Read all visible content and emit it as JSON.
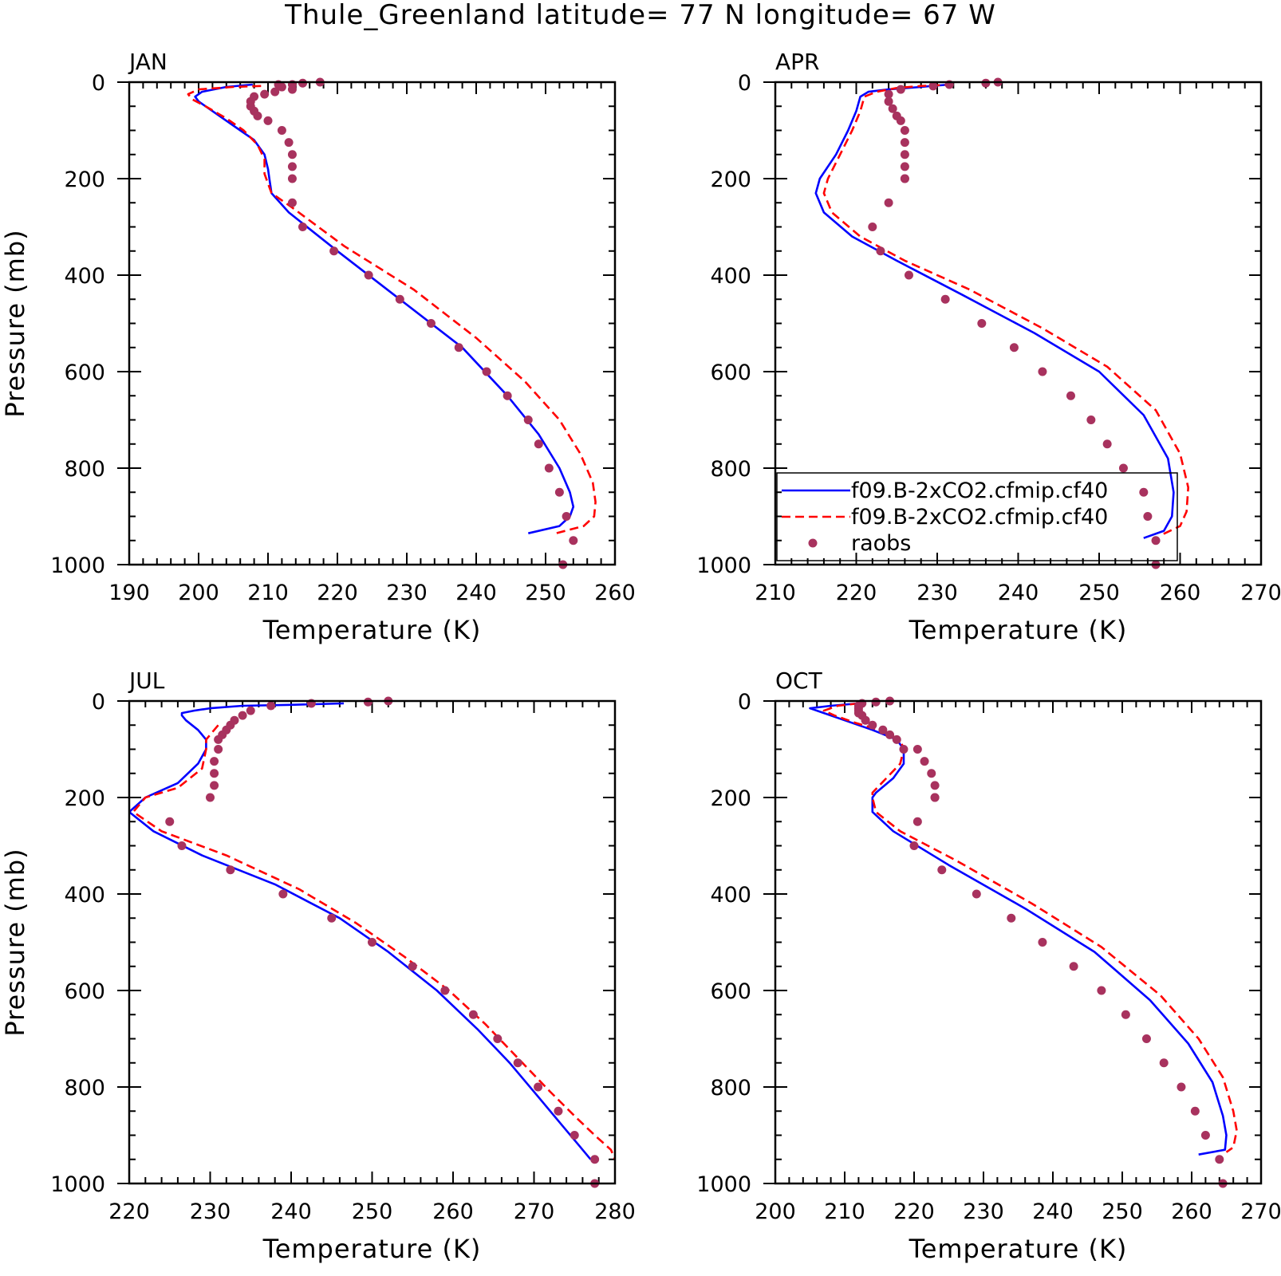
{
  "suptitle": "Thule_Greenland  latitude= 77 N longitude= 67 W",
  "colors": {
    "model1": "#0000ff",
    "model2": "#ff0000",
    "raobs": "#a8325e",
    "axis": "#000000"
  },
  "legend": {
    "panel": 1,
    "entries": [
      {
        "label": "f09.B-2xCO2.cfmip.cf40",
        "style": "solid",
        "color": "#0000ff"
      },
      {
        "label": "f09.B-2xCO2.cfmip.cf40",
        "style": "dashed",
        "color": "#ff0000"
      },
      {
        "label": "raobs",
        "style": "dot",
        "color": "#a8325e"
      }
    ]
  },
  "chart_data": [
    {
      "type": "line",
      "title": "JAN",
      "xlabel": "Temperature (K)",
      "ylabel": "Pressure (mb)",
      "xlim": [
        190,
        260
      ],
      "ylim": [
        0,
        1000
      ],
      "y_inverted": true,
      "xticks": [
        190,
        200,
        210,
        220,
        230,
        240,
        250,
        260
      ],
      "yticks": [
        0,
        200,
        400,
        600,
        800,
        1000
      ],
      "series": [
        {
          "kind": "solid",
          "color": "#0000ff",
          "x": [
            207.8,
            204,
            200.5,
            199.5,
            200,
            202,
            204,
            206,
            208,
            209.5,
            210,
            210.2,
            210.5,
            213,
            220,
            229,
            238,
            244.5,
            249,
            252,
            253.5,
            254,
            253.5,
            252,
            247.5
          ],
          "y": [
            5,
            10,
            20,
            30,
            40,
            60,
            80,
            100,
            120,
            150,
            180,
            200,
            230,
            270,
            350,
            450,
            550,
            650,
            730,
            800,
            850,
            880,
            900,
            920,
            935
          ]
        },
        {
          "kind": "dashed",
          "color": "#ff0000",
          "x": [
            209,
            205,
            200,
            198.5,
            199,
            201,
            204,
            206.5,
            208.5,
            209.5,
            209.5,
            210,
            210.5,
            213.5,
            221,
            231,
            240,
            247,
            252,
            255,
            256.8,
            257.2,
            257,
            255.5,
            251.5
          ],
          "y": [
            8,
            10,
            15,
            25,
            35,
            50,
            75,
            100,
            130,
            160,
            190,
            210,
            230,
            260,
            340,
            430,
            530,
            620,
            700,
            770,
            830,
            870,
            900,
            920,
            935
          ]
        },
        {
          "kind": "dots",
          "color": "#a8325e",
          "x": [
            217.5,
            215,
            213.5,
            211.5,
            212,
            213.5,
            211,
            209.5,
            208,
            207.5,
            207.5,
            208,
            208.5,
            210,
            212,
            213,
            213.5,
            213.5,
            213.5,
            213.5,
            215,
            219.5,
            224.5,
            229,
            233.5,
            237.5,
            241.5,
            244.5,
            247.5,
            249,
            250.5,
            252,
            253,
            254,
            252.5
          ],
          "y": [
            0,
            2,
            5,
            5,
            10,
            15,
            20,
            25,
            30,
            40,
            50,
            60,
            70,
            80,
            100,
            125,
            150,
            175,
            200,
            250,
            300,
            350,
            400,
            450,
            500,
            550,
            600,
            650,
            700,
            750,
            800,
            850,
            900,
            950,
            1000
          ]
        }
      ]
    },
    {
      "type": "line",
      "title": "APR",
      "xlabel": "Temperature (K)",
      "ylabel": "",
      "xlim": [
        210,
        270
      ],
      "ylim": [
        0,
        1000
      ],
      "y_inverted": true,
      "xticks": [
        210,
        220,
        230,
        240,
        250,
        260,
        270
      ],
      "yticks": [
        0,
        200,
        400,
        600,
        800,
        1000
      ],
      "series": [
        {
          "kind": "solid",
          "color": "#0000ff",
          "x": [
            231.5,
            228,
            224,
            221.5,
            220.5,
            220,
            219,
            217.5,
            215.5,
            215,
            216,
            219.5,
            225,
            233,
            242,
            250,
            255.5,
            258.5,
            259.2,
            259,
            258,
            255.5
          ],
          "y": [
            5,
            10,
            15,
            20,
            30,
            60,
            100,
            150,
            200,
            230,
            270,
            320,
            370,
            440,
            520,
            600,
            690,
            780,
            850,
            900,
            930,
            945
          ]
        },
        {
          "kind": "dashed",
          "color": "#ff0000",
          "x": [
            232,
            228,
            225,
            222.5,
            221,
            220.5,
            219.5,
            218,
            216.5,
            216,
            217,
            220.5,
            226,
            234,
            243,
            251,
            257,
            260,
            261,
            260.8,
            260,
            257.5
          ],
          "y": [
            5,
            8,
            12,
            20,
            30,
            60,
            100,
            150,
            200,
            230,
            270,
            320,
            370,
            430,
            510,
            590,
            680,
            770,
            840,
            890,
            920,
            940
          ]
        },
        {
          "kind": "dots",
          "color": "#a8325e",
          "x": [
            237.5,
            236,
            231.5,
            229.5,
            225.5,
            224,
            224,
            224.5,
            225,
            225.5,
            226,
            226,
            226,
            226,
            226,
            226,
            224,
            222,
            223,
            226.5,
            231,
            235.5,
            239.5,
            243,
            246.5,
            249,
            251,
            253,
            255.5,
            256,
            257,
            257
          ],
          "y": [
            0,
            2,
            5,
            8,
            15,
            25,
            40,
            55,
            70,
            80,
            100,
            125,
            150,
            175,
            200,
            200,
            250,
            300,
            350,
            400,
            450,
            500,
            550,
            600,
            650,
            700,
            750,
            800,
            850,
            900,
            950,
            1000
          ]
        }
      ]
    },
    {
      "type": "line",
      "title": "JUL",
      "xlabel": "Temperature (K)",
      "ylabel": "Pressure (mb)",
      "xlim": [
        220,
        280
      ],
      "ylim": [
        0,
        1000
      ],
      "y_inverted": true,
      "xticks": [
        220,
        230,
        240,
        250,
        260,
        270,
        280
      ],
      "yticks": [
        0,
        200,
        400,
        600,
        800,
        1000
      ],
      "series": [
        {
          "kind": "solid",
          "color": "#0000ff",
          "x": [
            246.5,
            240,
            234,
            230,
            228,
            226.5,
            226.5,
            227,
            228.5,
            229.5,
            229.5,
            228.5,
            226,
            222,
            220,
            223,
            229,
            238,
            246,
            252,
            258,
            263,
            267,
            270.5,
            273.5,
            275.5,
            277
          ],
          "y": [
            5,
            8,
            10,
            15,
            20,
            25,
            30,
            40,
            60,
            80,
            100,
            130,
            170,
            200,
            230,
            270,
            320,
            380,
            450,
            520,
            600,
            680,
            750,
            820,
            880,
            920,
            950
          ]
        },
        {
          "kind": "dashed",
          "color": "#ff0000",
          "x": [
            231,
            229.5,
            229.5,
            229,
            226,
            222,
            220.5,
            224,
            232,
            241,
            248,
            254,
            259.5,
            264,
            268,
            272,
            275,
            277.5,
            279.5,
            280
          ],
          "y": [
            50,
            80,
            100,
            140,
            180,
            200,
            230,
            270,
            320,
            390,
            460,
            530,
            600,
            670,
            740,
            810,
            860,
            900,
            930,
            950
          ]
        },
        {
          "kind": "dots",
          "color": "#a8325e",
          "x": [
            252,
            249.5,
            242.5,
            237.5,
            235,
            234,
            233,
            232.5,
            232,
            231.5,
            231,
            231,
            230.5,
            230.5,
            230.5,
            230,
            225,
            226.5,
            232.5,
            239,
            245,
            250,
            255,
            259,
            262.5,
            265.5,
            268,
            270.5,
            273,
            275,
            277.5,
            277.5
          ],
          "y": [
            0,
            2,
            5,
            10,
            20,
            30,
            40,
            50,
            60,
            70,
            80,
            100,
            125,
            150,
            175,
            200,
            250,
            300,
            350,
            400,
            450,
            500,
            550,
            600,
            650,
            700,
            750,
            800,
            850,
            900,
            950,
            1000
          ]
        }
      ]
    },
    {
      "type": "line",
      "title": "OCT",
      "xlabel": "Temperature (K)",
      "ylabel": "",
      "xlim": [
        200,
        270
      ],
      "ylim": [
        0,
        1000
      ],
      "y_inverted": true,
      "xticks": [
        200,
        210,
        220,
        230,
        240,
        250,
        260,
        270
      ],
      "yticks": [
        0,
        200,
        400,
        600,
        800,
        1000
      ],
      "series": [
        {
          "kind": "solid",
          "color": "#0000ff",
          "x": [
            212,
            208,
            205,
            207,
            210,
            214,
            217.5,
            218.5,
            218.5,
            217,
            214.5,
            214,
            214,
            217,
            225,
            236,
            246,
            254,
            259.5,
            263,
            264.5,
            265,
            264.8,
            261
          ],
          "y": [
            5,
            10,
            15,
            25,
            40,
            60,
            80,
            100,
            130,
            160,
            190,
            200,
            230,
            270,
            340,
            430,
            520,
            620,
            710,
            790,
            860,
            900,
            930,
            940
          ]
        },
        {
          "kind": "dashed",
          "color": "#ff0000",
          "x": [
            212,
            209,
            207,
            208.5,
            211.5,
            215,
            218,
            218.5,
            218,
            216,
            214,
            214,
            214.5,
            218,
            226,
            237,
            247,
            255.5,
            261,
            264.5,
            266,
            266.5,
            266,
            265
          ],
          "y": [
            5,
            10,
            20,
            30,
            45,
            60,
            80,
            100,
            130,
            160,
            190,
            200,
            230,
            270,
            330,
            420,
            510,
            610,
            700,
            780,
            850,
            890,
            925,
            935
          ]
        },
        {
          "kind": "dots",
          "color": "#a8325e",
          "x": [
            216.5,
            214.5,
            212.5,
            212,
            212,
            212,
            212,
            212.5,
            213,
            214,
            215.5,
            216.5,
            217.5,
            218.5,
            220.5,
            221.5,
            222.5,
            223,
            223,
            223,
            220.5,
            220,
            224,
            229,
            234,
            238.5,
            243,
            247,
            250.5,
            253.5,
            256,
            258.5,
            260.5,
            262,
            264,
            264.5
          ],
          "y": [
            0,
            2,
            5,
            10,
            15,
            20,
            25,
            30,
            40,
            50,
            60,
            70,
            80,
            100,
            100,
            125,
            150,
            175,
            200,
            200,
            250,
            300,
            350,
            400,
            450,
            500,
            550,
            600,
            650,
            700,
            750,
            800,
            850,
            900,
            950,
            1000
          ]
        }
      ]
    }
  ]
}
